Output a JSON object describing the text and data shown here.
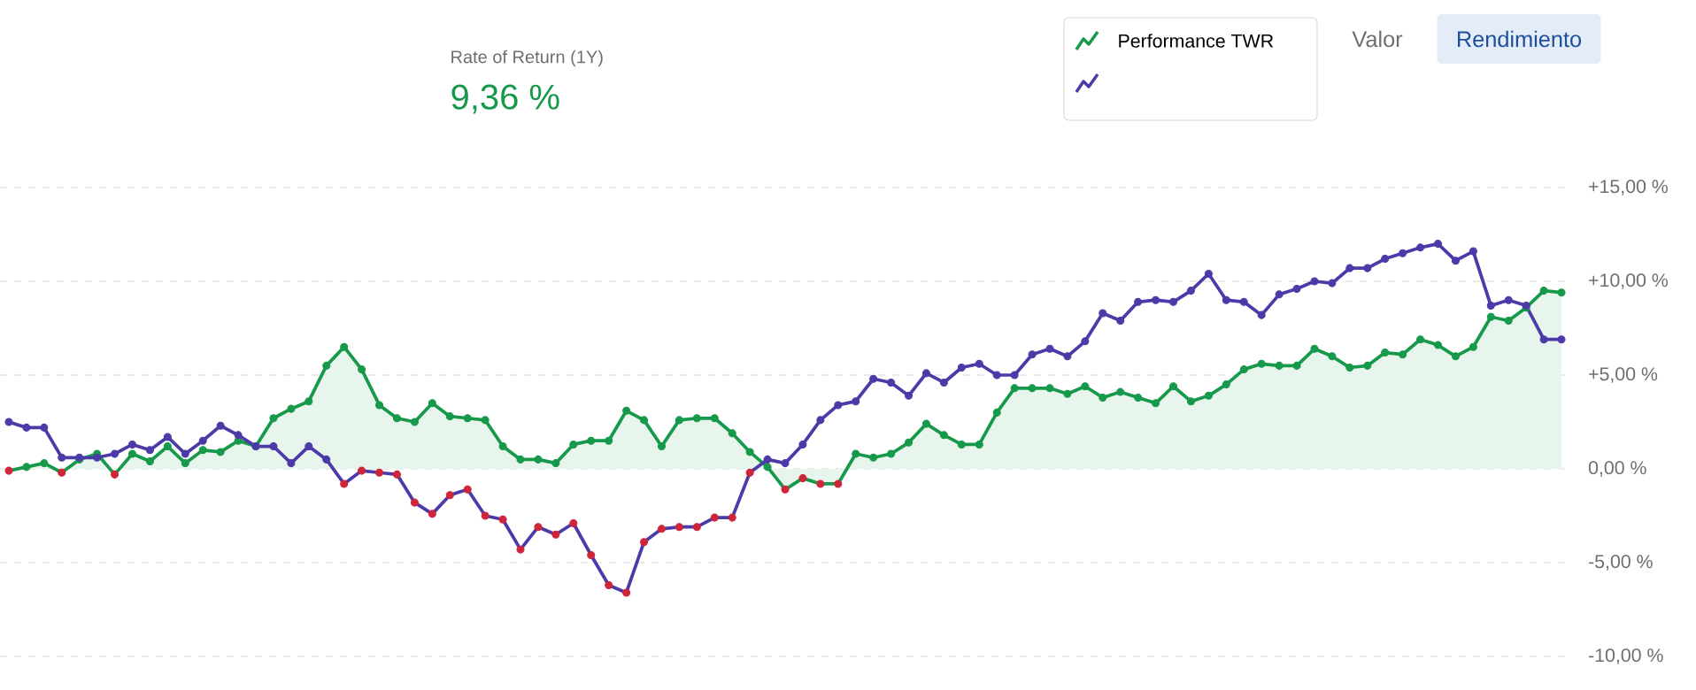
{
  "chart_data": {
    "type": "line",
    "title": "Rate of Return (1Y)",
    "subtitle": "9,36 %",
    "annotations": [
      "Valor",
      "Rendimiento"
    ],
    "categories": [
      null,
      null,
      null,
      null,
      null,
      null,
      null,
      null,
      null,
      null,
      null,
      null,
      null,
      null,
      null,
      null,
      null,
      null,
      null,
      null,
      null,
      null,
      null,
      null,
      null,
      null,
      null,
      null,
      null,
      null,
      null,
      null,
      null,
      null,
      null,
      null,
      null,
      null,
      null,
      null,
      null,
      null,
      null,
      null,
      null,
      null,
      null,
      null,
      null,
      null,
      null,
      null,
      null,
      null,
      null,
      null,
      null,
      null,
      null,
      null,
      null,
      null,
      null,
      null,
      null,
      null,
      null,
      null,
      null,
      null,
      null,
      null,
      null,
      null,
      null,
      null,
      null,
      null,
      null,
      null,
      null,
      null,
      null,
      null,
      null,
      null,
      null,
      null,
      null
    ],
    "series": [
      {
        "name": "Performance TWR",
        "type": "area",
        "color": "#16994a",
        "values": [
          -0.1,
          0.1,
          0.3,
          -0.2,
          0.5,
          0.8,
          -0.3,
          0.8,
          0.4,
          1.2,
          0.3,
          1.0,
          0.9,
          1.5,
          1.2,
          2.7,
          3.2,
          3.6,
          5.5,
          6.5,
          5.3,
          3.4,
          2.7,
          2.5,
          3.5,
          2.8,
          2.7,
          2.6,
          1.2,
          0.5,
          0.5,
          0.3,
          1.3,
          1.5,
          1.5,
          3.1,
          2.6,
          1.2,
          2.6,
          2.7,
          2.7,
          1.9,
          0.9,
          0.1,
          -1.1,
          -0.5,
          -0.8,
          -0.8,
          0.8,
          0.6,
          0.8,
          1.4,
          2.4,
          1.8,
          1.3,
          1.3,
          3.0,
          4.3,
          4.3,
          4.3,
          4.0,
          4.4,
          3.8,
          4.1,
          3.8,
          3.5,
          4.4,
          3.6,
          3.9,
          4.5,
          5.3,
          5.6,
          5.5,
          5.5,
          6.4,
          6.0,
          5.4,
          5.5,
          6.2,
          6.1,
          6.9,
          6.6,
          6.0,
          6.5,
          8.1,
          7.9,
          8.6,
          9.5,
          9.4
        ],
        "colors": [
          "#d0243a",
          "#16994a",
          "#16994a",
          "#d0243a",
          "#16994a",
          "#16994a",
          "#d0243a",
          "#16994a",
          "#16994a",
          "#16994a",
          "#16994a",
          "#16994a",
          "#16994a",
          "#16994a",
          "#16994a",
          "#16994a",
          "#16994a",
          "#16994a",
          "#16994a",
          "#16994a",
          "#16994a",
          "#16994a",
          "#16994a",
          "#16994a",
          "#16994a",
          "#16994a",
          "#16994a",
          "#16994a",
          "#16994a",
          "#16994a",
          "#16994a",
          "#16994a",
          "#16994a",
          "#16994a",
          "#16994a",
          "#16994a",
          "#16994a",
          "#16994a",
          "#16994a",
          "#16994a",
          "#16994a",
          "#16994a",
          "#16994a",
          "#16994a",
          "#d0243a",
          "#d0243a",
          "#d0243a",
          "#d0243a",
          "#16994a",
          "#16994a",
          "#16994a",
          "#16994a",
          "#16994a",
          "#16994a",
          "#16994a",
          "#16994a",
          "#16994a",
          "#16994a",
          "#16994a",
          "#16994a",
          "#16994a",
          "#16994a",
          "#16994a",
          "#16994a",
          "#16994a",
          "#16994a",
          "#16994a",
          "#16994a",
          "#16994a",
          "#16994a",
          "#16994a",
          "#16994a",
          "#16994a",
          "#16994a",
          "#16994a",
          "#16994a",
          "#16994a",
          "#16994a",
          "#16994a",
          "#16994a",
          "#16994a",
          "#16994a",
          "#16994a",
          "#16994a",
          "#16994a",
          "#16994a",
          "#16994a",
          "#16994a",
          "#16994a"
        ]
      },
      {
        "color": "#4b3aa8",
        "values": [
          2.5,
          2.2,
          2.2,
          0.6,
          0.6,
          0.6,
          0.8,
          1.3,
          1.0,
          1.7,
          0.8,
          1.5,
          2.3,
          1.8,
          1.2,
          1.2,
          0.3,
          1.2,
          0.5,
          -0.8,
          -0.1,
          -0.2,
          -0.3,
          -1.8,
          -2.4,
          -1.4,
          -1.1,
          -2.5,
          -2.7,
          -4.3,
          -3.1,
          -3.5,
          -2.9,
          -4.6,
          -6.2,
          -6.6,
          -3.9,
          -3.2,
          -3.1,
          -3.1,
          -2.6,
          -2.6,
          -0.2,
          0.5,
          0.3,
          1.3,
          2.6,
          3.4,
          3.6,
          4.8,
          4.6,
          3.9,
          5.1,
          4.6,
          5.4,
          5.6,
          5.0,
          5.0,
          6.1,
          6.4,
          6.0,
          6.8,
          8.3,
          7.9,
          8.9,
          9.0,
          8.9,
          9.5,
          10.4,
          9.0,
          8.9,
          8.2,
          9.3,
          9.6,
          10.0,
          9.9,
          10.7,
          10.7,
          11.2,
          11.5,
          11.8,
          12.0,
          11.1,
          11.6,
          8.7,
          9.0,
          8.7,
          6.9,
          6.9
        ],
        "colors": [
          "#4b3aa8",
          "#4b3aa8",
          "#4b3aa8",
          "#4b3aa8",
          "#4b3aa8",
          "#4b3aa8",
          "#4b3aa8",
          "#4b3aa8",
          "#4b3aa8",
          "#4b3aa8",
          "#4b3aa8",
          "#4b3aa8",
          "#4b3aa8",
          "#4b3aa8",
          "#4b3aa8",
          "#4b3aa8",
          "#4b3aa8",
          "#4b3aa8",
          "#4b3aa8",
          "#d0243a",
          "#d0243a",
          "#d0243a",
          "#d0243a",
          "#d0243a",
          "#d0243a",
          "#d0243a",
          "#d0243a",
          "#d0243a",
          "#d0243a",
          "#d0243a",
          "#d0243a",
          "#d0243a",
          "#d0243a",
          "#d0243a",
          "#d0243a",
          "#d0243a",
          "#d0243a",
          "#d0243a",
          "#d0243a",
          "#d0243a",
          "#d0243a",
          "#d0243a",
          "#d0243a",
          "#4b3aa8",
          "#4b3aa8",
          "#4b3aa8",
          "#4b3aa8",
          "#4b3aa8",
          "#4b3aa8",
          "#4b3aa8",
          "#4b3aa8",
          "#4b3aa8",
          "#4b3aa8",
          "#4b3aa8",
          "#4b3aa8",
          "#4b3aa8",
          "#4b3aa8",
          "#4b3aa8",
          "#4b3aa8",
          "#4b3aa8",
          "#4b3aa8",
          "#4b3aa8",
          "#4b3aa8",
          "#4b3aa8",
          "#4b3aa8",
          "#4b3aa8",
          "#4b3aa8",
          "#4b3aa8",
          "#4b3aa8",
          "#4b3aa8",
          "#4b3aa8",
          "#4b3aa8",
          "#4b3aa8",
          "#4b3aa8",
          "#4b3aa8",
          "#4b3aa8",
          "#4b3aa8",
          "#4b3aa8",
          "#4b3aa8",
          "#4b3aa8",
          "#4b3aa8",
          "#4b3aa8",
          "#4b3aa8",
          "#4b3aa8",
          "#4b3aa8",
          "#4b3aa8",
          "#4b3aa8",
          "#4b3aa8",
          "#4b3aa8"
        ]
      }
    ],
    "ylim": [
      -10,
      15
    ],
    "yticks": [
      {
        "value": 15,
        "label": "+15,00 %"
      },
      {
        "value": 10,
        "label": "+10,00 %"
      },
      {
        "value": 5,
        "label": "+5,00 %"
      },
      {
        "value": 0,
        "label": "0,00 %"
      },
      {
        "value": -5,
        "label": "-5,00 %"
      },
      {
        "value": -10,
        "label": "-10,00 %"
      }
    ],
    "grid": "y",
    "legend": "top right",
    "marker": "circle"
  }
}
